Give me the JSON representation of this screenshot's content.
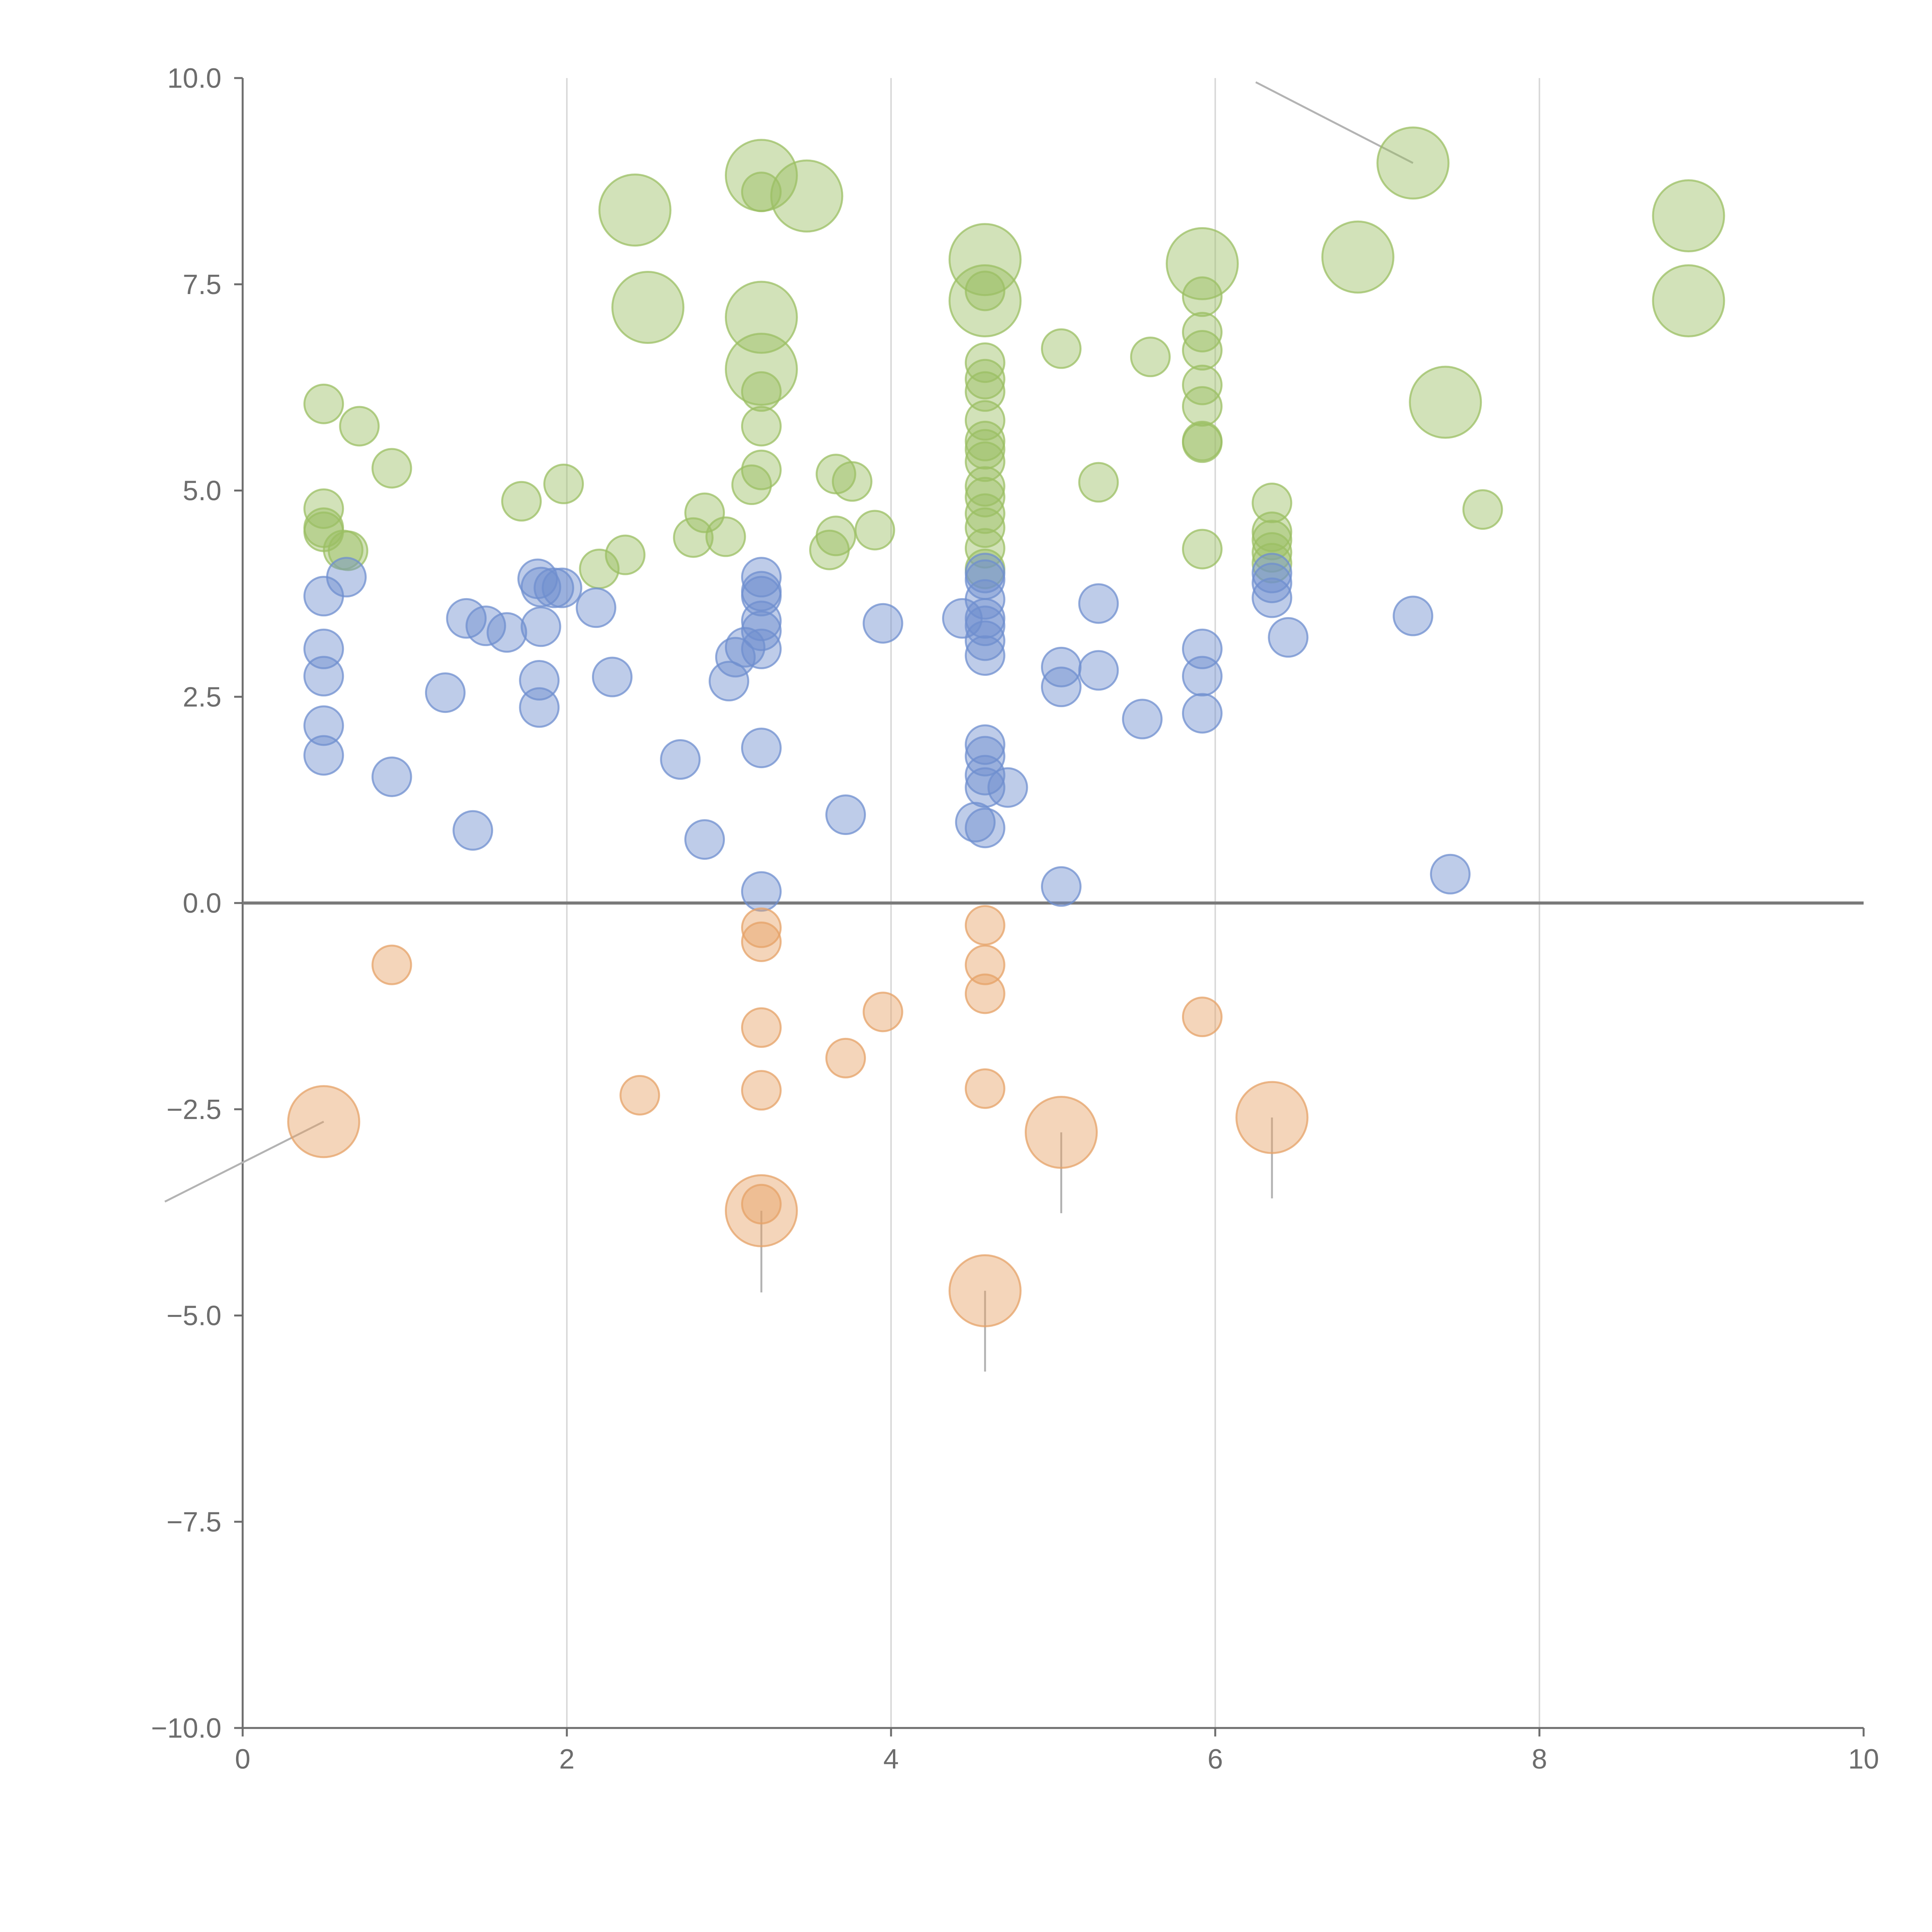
{
  "chart_data": {
    "type": "scatter",
    "title": "",
    "xlabel": "",
    "ylabel": "",
    "xlim": [
      0,
      10
    ],
    "ylim": [
      -10,
      10
    ],
    "x_ticks": [
      "0",
      "2",
      "4",
      "6",
      "8",
      "10"
    ],
    "y_ticks": [
      "−10.0",
      "−7.5",
      "−5.0",
      "−2.5",
      "0.0",
      "2.5",
      "5.0",
      "7.5",
      "10.0"
    ],
    "grid": "vertical",
    "legend": "none",
    "colors": {
      "green": "#9bbf63",
      "blue": "#6f8fcf",
      "orange": "#e6a167"
    },
    "series": [
      {
        "color_key": "green",
        "points": [
          [
            0.5,
            6.05,
            1
          ],
          [
            0.72,
            5.78,
            1
          ],
          [
            0.92,
            5.27,
            1
          ],
          [
            0.5,
            4.78,
            1
          ],
          [
            0.5,
            4.55,
            1
          ],
          [
            0.5,
            4.5,
            1
          ],
          [
            0.62,
            4.28,
            1
          ],
          [
            0.65,
            4.27,
            1
          ],
          [
            1.72,
            4.87,
            1
          ],
          [
            1.98,
            5.08,
            1
          ],
          [
            2.2,
            4.05,
            1
          ],
          [
            2.36,
            4.22,
            1
          ],
          [
            2.42,
            8.4,
            2
          ],
          [
            2.5,
            7.22,
            2
          ],
          [
            2.78,
            4.43,
            1
          ],
          [
            2.85,
            4.73,
            1
          ],
          [
            2.98,
            4.44,
            1
          ],
          [
            3.14,
            5.07,
            1
          ],
          [
            3.2,
            5.25,
            1
          ],
          [
            3.2,
            5.78,
            1
          ],
          [
            3.2,
            6.2,
            1
          ],
          [
            3.2,
            6.47,
            2
          ],
          [
            3.2,
            7.1,
            2
          ],
          [
            3.2,
            8.62,
            1
          ],
          [
            3.2,
            8.82,
            2
          ],
          [
            3.48,
            8.57,
            2
          ],
          [
            3.62,
            4.28,
            1
          ],
          [
            3.66,
            4.45,
            1
          ],
          [
            3.66,
            5.2,
            1
          ],
          [
            3.76,
            5.11,
            1
          ],
          [
            3.9,
            4.52,
            1
          ],
          [
            4.58,
            7.8,
            2
          ],
          [
            4.58,
            7.42,
            1
          ],
          [
            4.58,
            7.3,
            2
          ],
          [
            4.58,
            6.55,
            1
          ],
          [
            4.58,
            6.35,
            1
          ],
          [
            4.58,
            6.2,
            1
          ],
          [
            4.58,
            5.85,
            1
          ],
          [
            4.58,
            5.6,
            1
          ],
          [
            4.58,
            5.5,
            1
          ],
          [
            4.58,
            5.35,
            1
          ],
          [
            4.58,
            5.05,
            1
          ],
          [
            4.58,
            4.92,
            1
          ],
          [
            4.58,
            4.72,
            1
          ],
          [
            4.58,
            4.55,
            1
          ],
          [
            4.58,
            4.3,
            1
          ],
          [
            4.58,
            4.05,
            1
          ],
          [
            5.05,
            6.72,
            1
          ],
          [
            5.28,
            5.1,
            1
          ],
          [
            5.6,
            6.62,
            1
          ],
          [
            5.92,
            7.75,
            2
          ],
          [
            5.92,
            7.35,
            1
          ],
          [
            5.92,
            6.92,
            1
          ],
          [
            5.92,
            6.7,
            1
          ],
          [
            5.92,
            6.28,
            1
          ],
          [
            5.92,
            6.02,
            1
          ],
          [
            5.92,
            5.6,
            1
          ],
          [
            5.92,
            5.58,
            1
          ],
          [
            5.92,
            4.29,
            1
          ],
          [
            6.35,
            4.85,
            1
          ],
          [
            6.35,
            4.5,
            1
          ],
          [
            6.35,
            4.4,
            1
          ],
          [
            6.35,
            4.25,
            1
          ],
          [
            6.35,
            4.12,
            1
          ],
          [
            6.88,
            7.83,
            2
          ],
          [
            7.22,
            8.97,
            2
          ],
          [
            7.42,
            6.07,
            2
          ],
          [
            7.65,
            4.77,
            1
          ],
          [
            8.92,
            8.33,
            2
          ],
          [
            8.92,
            7.3,
            2
          ]
        ]
      },
      {
        "color_key": "blue",
        "points": [
          [
            0.5,
            3.72,
            1
          ],
          [
            0.5,
            3.08,
            1
          ],
          [
            0.5,
            2.75,
            1
          ],
          [
            0.5,
            2.15,
            1
          ],
          [
            0.5,
            1.79,
            1
          ],
          [
            0.64,
            3.95,
            1
          ],
          [
            0.92,
            1.53,
            1
          ],
          [
            1.25,
            2.55,
            1
          ],
          [
            1.38,
            3.45,
            1
          ],
          [
            1.42,
            0.88,
            1
          ],
          [
            1.5,
            3.36,
            1
          ],
          [
            1.63,
            3.28,
            1
          ],
          [
            1.82,
            3.93,
            1
          ],
          [
            1.84,
            3.83,
            1
          ],
          [
            1.84,
            3.35,
            1
          ],
          [
            1.83,
            2.7,
            1
          ],
          [
            1.83,
            2.37,
            1
          ],
          [
            1.92,
            3.82,
            1
          ],
          [
            1.97,
            3.82,
            1
          ],
          [
            2.18,
            3.58,
            1
          ],
          [
            2.28,
            2.74,
            1
          ],
          [
            2.7,
            1.74,
            1
          ],
          [
            2.85,
            0.77,
            1
          ],
          [
            3.0,
            2.69,
            1
          ],
          [
            3.04,
            2.98,
            1
          ],
          [
            3.1,
            3.1,
            1
          ],
          [
            3.2,
            3.95,
            1
          ],
          [
            3.2,
            3.78,
            1
          ],
          [
            3.2,
            3.72,
            1
          ],
          [
            3.2,
            3.42,
            1
          ],
          [
            3.2,
            3.3,
            1
          ],
          [
            3.2,
            3.08,
            1
          ],
          [
            3.2,
            1.88,
            1
          ],
          [
            3.2,
            0.14,
            1
          ],
          [
            3.72,
            1.07,
            1
          ],
          [
            3.95,
            3.39,
            1
          ],
          [
            4.44,
            3.45,
            1
          ],
          [
            4.58,
            4.0,
            1
          ],
          [
            4.58,
            3.92,
            1
          ],
          [
            4.58,
            3.68,
            1
          ],
          [
            4.58,
            3.45,
            1
          ],
          [
            4.58,
            3.36,
            1
          ],
          [
            4.58,
            3.18,
            1
          ],
          [
            4.58,
            3.0,
            1
          ],
          [
            4.58,
            1.92,
            1
          ],
          [
            4.58,
            1.78,
            1
          ],
          [
            4.58,
            1.55,
            1
          ],
          [
            4.58,
            1.4,
            1
          ],
          [
            4.52,
            0.98,
            1
          ],
          [
            4.58,
            0.91,
            1
          ],
          [
            4.72,
            1.4,
            1
          ],
          [
            5.05,
            2.86,
            1
          ],
          [
            5.05,
            2.62,
            1
          ],
          [
            5.05,
            0.2,
            1
          ],
          [
            5.28,
            3.63,
            1
          ],
          [
            5.28,
            2.82,
            1
          ],
          [
            5.55,
            2.23,
            1
          ],
          [
            5.92,
            3.08,
            1
          ],
          [
            5.92,
            2.75,
            1
          ],
          [
            5.92,
            2.3,
            1
          ],
          [
            6.35,
            4.0,
            1
          ],
          [
            6.35,
            3.88,
            1
          ],
          [
            6.35,
            3.7,
            1
          ],
          [
            6.45,
            3.22,
            1
          ],
          [
            7.22,
            3.48,
            1
          ],
          [
            7.45,
            0.35,
            1
          ]
        ]
      },
      {
        "color_key": "orange",
        "points": [
          [
            0.5,
            -2.65,
            2
          ],
          [
            0.92,
            -0.75,
            1
          ],
          [
            2.45,
            -2.33,
            1
          ],
          [
            3.2,
            -0.3,
            1
          ],
          [
            3.2,
            -0.47,
            1
          ],
          [
            3.2,
            -1.51,
            1
          ],
          [
            3.2,
            -2.27,
            1
          ],
          [
            3.2,
            -3.73,
            2
          ],
          [
            3.2,
            -3.65,
            1
          ],
          [
            3.72,
            -1.88,
            1
          ],
          [
            3.95,
            -1.32,
            1
          ],
          [
            4.58,
            -0.27,
            1
          ],
          [
            4.58,
            -0.75,
            1
          ],
          [
            4.58,
            -1.1,
            1
          ],
          [
            4.58,
            -2.25,
            1
          ],
          [
            4.58,
            -4.7,
            2
          ],
          [
            5.05,
            -2.78,
            2
          ],
          [
            5.92,
            -1.38,
            1
          ],
          [
            6.35,
            -2.6,
            2
          ]
        ]
      }
    ]
  }
}
